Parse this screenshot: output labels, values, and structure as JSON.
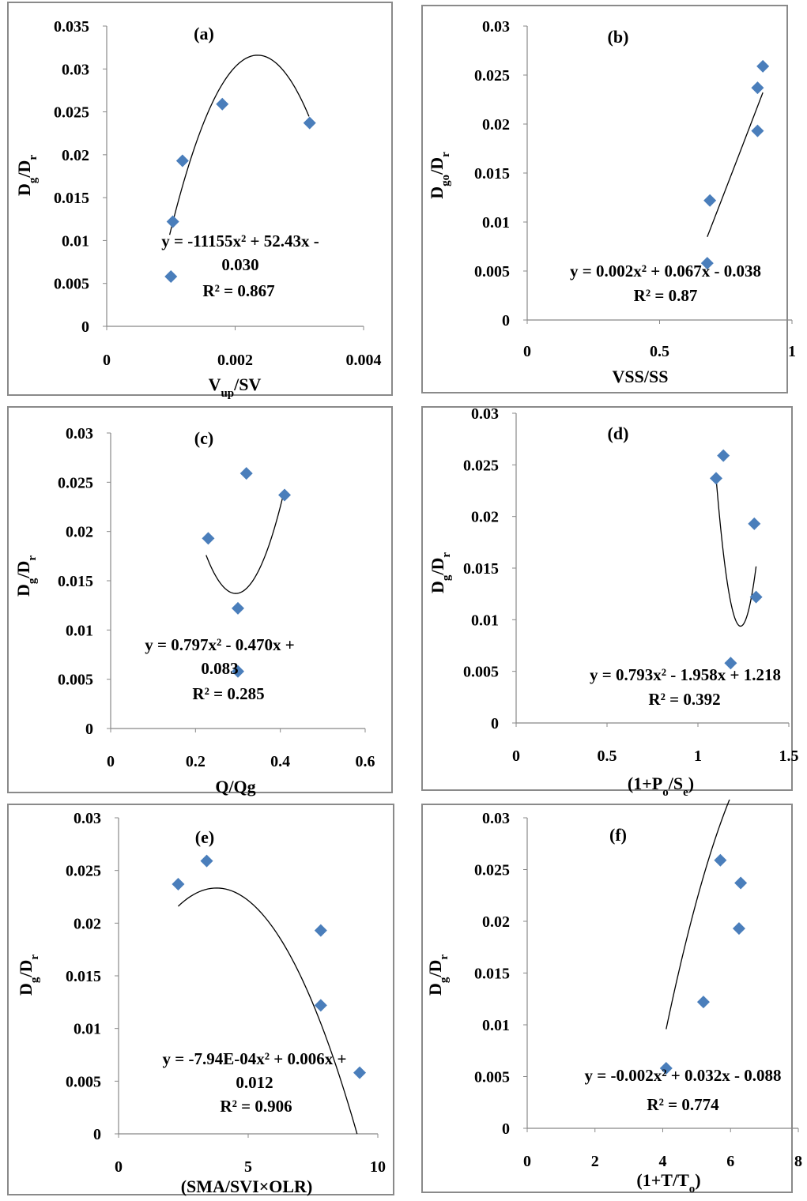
{
  "chart_data": [
    {
      "type": "scatter",
      "label": "(a)",
      "xlabel_parts": [
        {
          "t": "V"
        },
        {
          "t": "up",
          "sub": true
        },
        {
          "t": "/SV"
        }
      ],
      "ylabel_parts": [
        {
          "t": "D"
        },
        {
          "t": "g",
          "sub": true
        },
        {
          "t": "/D"
        },
        {
          "t": "r",
          "sub": true
        }
      ],
      "xlim": [
        0,
        0.004
      ],
      "ylim": [
        0,
        0.035
      ],
      "xticks": [
        "0",
        "0.002",
        "0.004"
      ],
      "yticks": [
        "0",
        "0.005",
        "0.01",
        "0.015",
        "0.02",
        "0.025",
        "0.03",
        "0.035"
      ],
      "points": [
        [
          0.001,
          0.0058
        ],
        [
          0.00103,
          0.0122
        ],
        [
          0.00118,
          0.0193
        ],
        [
          0.0018,
          0.0259
        ],
        [
          0.00316,
          0.0237
        ]
      ],
      "trend": {
        "type": "poly2",
        "coef": [
          -11155,
          52.43,
          -0.03
        ],
        "xrange": [
          0.00098,
          0.00315
        ]
      },
      "equation": [
        "y = -11155x² + 52.43x -",
        "0.030"
      ],
      "r2": "R² = 0.867",
      "marker_color": "#4a7ebb",
      "line_color": "#000000"
    },
    {
      "type": "scatter",
      "label": "(b)",
      "xlabel_parts": [
        {
          "t": "VSS/SS"
        }
      ],
      "ylabel_parts": [
        {
          "t": "D"
        },
        {
          "t": "go",
          "sub": true
        },
        {
          "t": "/D"
        },
        {
          "t": "r",
          "sub": true
        }
      ],
      "xlim": [
        0,
        1
      ],
      "ylim": [
        0,
        0.03
      ],
      "xticks": [
        "0",
        "0.5",
        "1"
      ],
      "yticks": [
        "0",
        "0.005",
        "0.01",
        "0.015",
        "0.02",
        "0.025",
        "0.03"
      ],
      "points": [
        [
          0.68,
          0.0058
        ],
        [
          0.69,
          0.0122
        ],
        [
          0.87,
          0.0193
        ],
        [
          0.87,
          0.0237
        ],
        [
          0.89,
          0.0259
        ]
      ],
      "trend": {
        "type": "poly2",
        "coef": [
          0.002,
          0.067,
          -0.038
        ],
        "xrange": [
          0.68,
          0.89
        ]
      },
      "equation": [
        "y = 0.002x² + 0.067x - 0.038"
      ],
      "r2": "R² = 0.87",
      "marker_color": "#4a7ebb",
      "line_color": "#000000"
    },
    {
      "type": "scatter",
      "label": "(c)",
      "xlabel_parts": [
        {
          "t": "Q/Qg"
        }
      ],
      "ylabel_parts": [
        {
          "t": "D"
        },
        {
          "t": "g",
          "sub": true
        },
        {
          "t": "/D"
        },
        {
          "t": "r",
          "sub": true
        }
      ],
      "xlim": [
        0,
        0.6
      ],
      "ylim": [
        0,
        0.03
      ],
      "xticks": [
        "0",
        "0.2",
        "0.4",
        "0.6"
      ],
      "yticks": [
        "0",
        "0.005",
        "0.01",
        "0.015",
        "0.02",
        "0.025",
        "0.03"
      ],
      "points": [
        [
          0.23,
          0.0193
        ],
        [
          0.3,
          0.0122
        ],
        [
          0.3,
          0.0058
        ],
        [
          0.32,
          0.0259
        ],
        [
          0.41,
          0.0237
        ]
      ],
      "trend": {
        "type": "poly2",
        "coef": [
          0.797,
          -0.47,
          0.083
        ],
        "xrange": [
          0.225,
          0.41
        ]
      },
      "equation": [
        "y = 0.797x² - 0.470x +",
        "0.083"
      ],
      "r2": "R² = 0.285",
      "marker_color": "#4a7ebb",
      "line_color": "#000000"
    },
    {
      "type": "scatter",
      "label": "(d)",
      "xlabel_parts": [
        {
          "t": "(1+P"
        },
        {
          "t": "o",
          "sub": true
        },
        {
          "t": "/S"
        },
        {
          "t": "e",
          "sub": true
        },
        {
          "t": ")"
        }
      ],
      "ylabel_parts": [
        {
          "t": "D"
        },
        {
          "t": "g",
          "sub": true
        },
        {
          "t": "/D"
        },
        {
          "t": "r",
          "sub": true
        }
      ],
      "xlim": [
        0,
        1.5
      ],
      "ylim": [
        0,
        0.03
      ],
      "xticks": [
        "0",
        "0.5",
        "1",
        "1.5"
      ],
      "yticks": [
        "0",
        "0.005",
        "0.01",
        "0.015",
        "0.02",
        "0.025",
        "0.03"
      ],
      "points": [
        [
          1.1,
          0.0237
        ],
        [
          1.14,
          0.0259
        ],
        [
          1.18,
          0.0058
        ],
        [
          1.31,
          0.0193
        ],
        [
          1.32,
          0.0122
        ]
      ],
      "trend": {
        "type": "poly2",
        "coef": [
          0.793,
          -1.958,
          1.218
        ],
        "xrange": [
          1.1,
          1.32
        ]
      },
      "equation": [
        "y = 0.793x² - 1.958x + 1.218"
      ],
      "r2": "R² = 0.392",
      "marker_color": "#4a7ebb",
      "line_color": "#000000"
    },
    {
      "type": "scatter",
      "label": "(e)",
      "xlabel_parts": [
        {
          "t": "(SMA/SVI×OLR)"
        }
      ],
      "ylabel_parts": [
        {
          "t": "D"
        },
        {
          "t": "g",
          "sub": true
        },
        {
          "t": "/D"
        },
        {
          "t": "r",
          "sub": true
        }
      ],
      "xlim": [
        0,
        10
      ],
      "ylim": [
        0,
        0.03
      ],
      "xticks": [
        "0",
        "5",
        "10"
      ],
      "yticks": [
        "0",
        "0.005",
        "0.01",
        "0.015",
        "0.02",
        "0.025",
        "0.03"
      ],
      "points": [
        [
          2.3,
          0.0237
        ],
        [
          3.4,
          0.0259
        ],
        [
          7.8,
          0.0193
        ],
        [
          7.8,
          0.0122
        ],
        [
          9.3,
          0.0058
        ]
      ],
      "trend": {
        "type": "poly2",
        "coef": [
          -0.000794,
          0.006,
          0.012
        ],
        "xrange": [
          2.3,
          9.2
        ]
      },
      "equation": [
        "y = -7.94E-04x² + 0.006x +",
        "0.012"
      ],
      "r2": "R² = 0.906",
      "marker_color": "#4a7ebb",
      "line_color": "#000000"
    },
    {
      "type": "scatter",
      "label": "(f)",
      "xlabel_parts": [
        {
          "t": "(1+T/T"
        },
        {
          "t": "o",
          "sub": true
        },
        {
          "t": ")"
        }
      ],
      "ylabel_parts": [
        {
          "t": "D"
        },
        {
          "t": "g",
          "sub": true
        },
        {
          "t": "/D"
        },
        {
          "t": "r",
          "sub": true
        }
      ],
      "xlim": [
        0,
        8
      ],
      "ylim": [
        0,
        0.03
      ],
      "xticks": [
        "0",
        "2",
        "4",
        "6",
        "8"
      ],
      "yticks": [
        "0",
        "0.005",
        "0.01",
        "0.015",
        "0.02",
        "0.025",
        "0.03"
      ],
      "points": [
        [
          4.1,
          0.0058
        ],
        [
          5.2,
          0.0122
        ],
        [
          5.7,
          0.0259
        ],
        [
          6.25,
          0.0193
        ],
        [
          6.3,
          0.0237
        ]
      ],
      "trend": {
        "type": "poly2",
        "coef": [
          -0.002,
          0.032,
          -0.088
        ],
        "xrange": [
          4.1,
          6.3
        ]
      },
      "equation": [
        "y = -0.002x² + 0.032x - 0.088"
      ],
      "r2": "R² = 0.774",
      "marker_color": "#4a7ebb",
      "line_color": "#000000"
    }
  ]
}
